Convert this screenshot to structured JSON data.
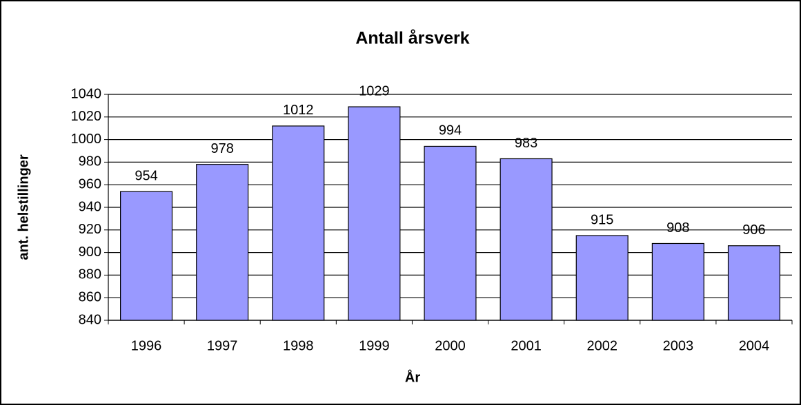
{
  "chart_data": {
    "type": "bar",
    "title": "Antall årsverk",
    "x_label": "År",
    "y_label": "ant. helstillinger",
    "categories": [
      "1996",
      "1997",
      "1998",
      "1999",
      "2000",
      "2001",
      "2002",
      "2003",
      "2004"
    ],
    "values": [
      954,
      978,
      1012,
      1029,
      994,
      983,
      915,
      908,
      906
    ],
    "color": "#9999ff",
    "ylim": [
      840,
      1040
    ],
    "yticks": [
      840,
      860,
      880,
      900,
      920,
      940,
      960,
      980,
      1000,
      1020,
      1040
    ],
    "grid": true,
    "data_labels": true
  }
}
